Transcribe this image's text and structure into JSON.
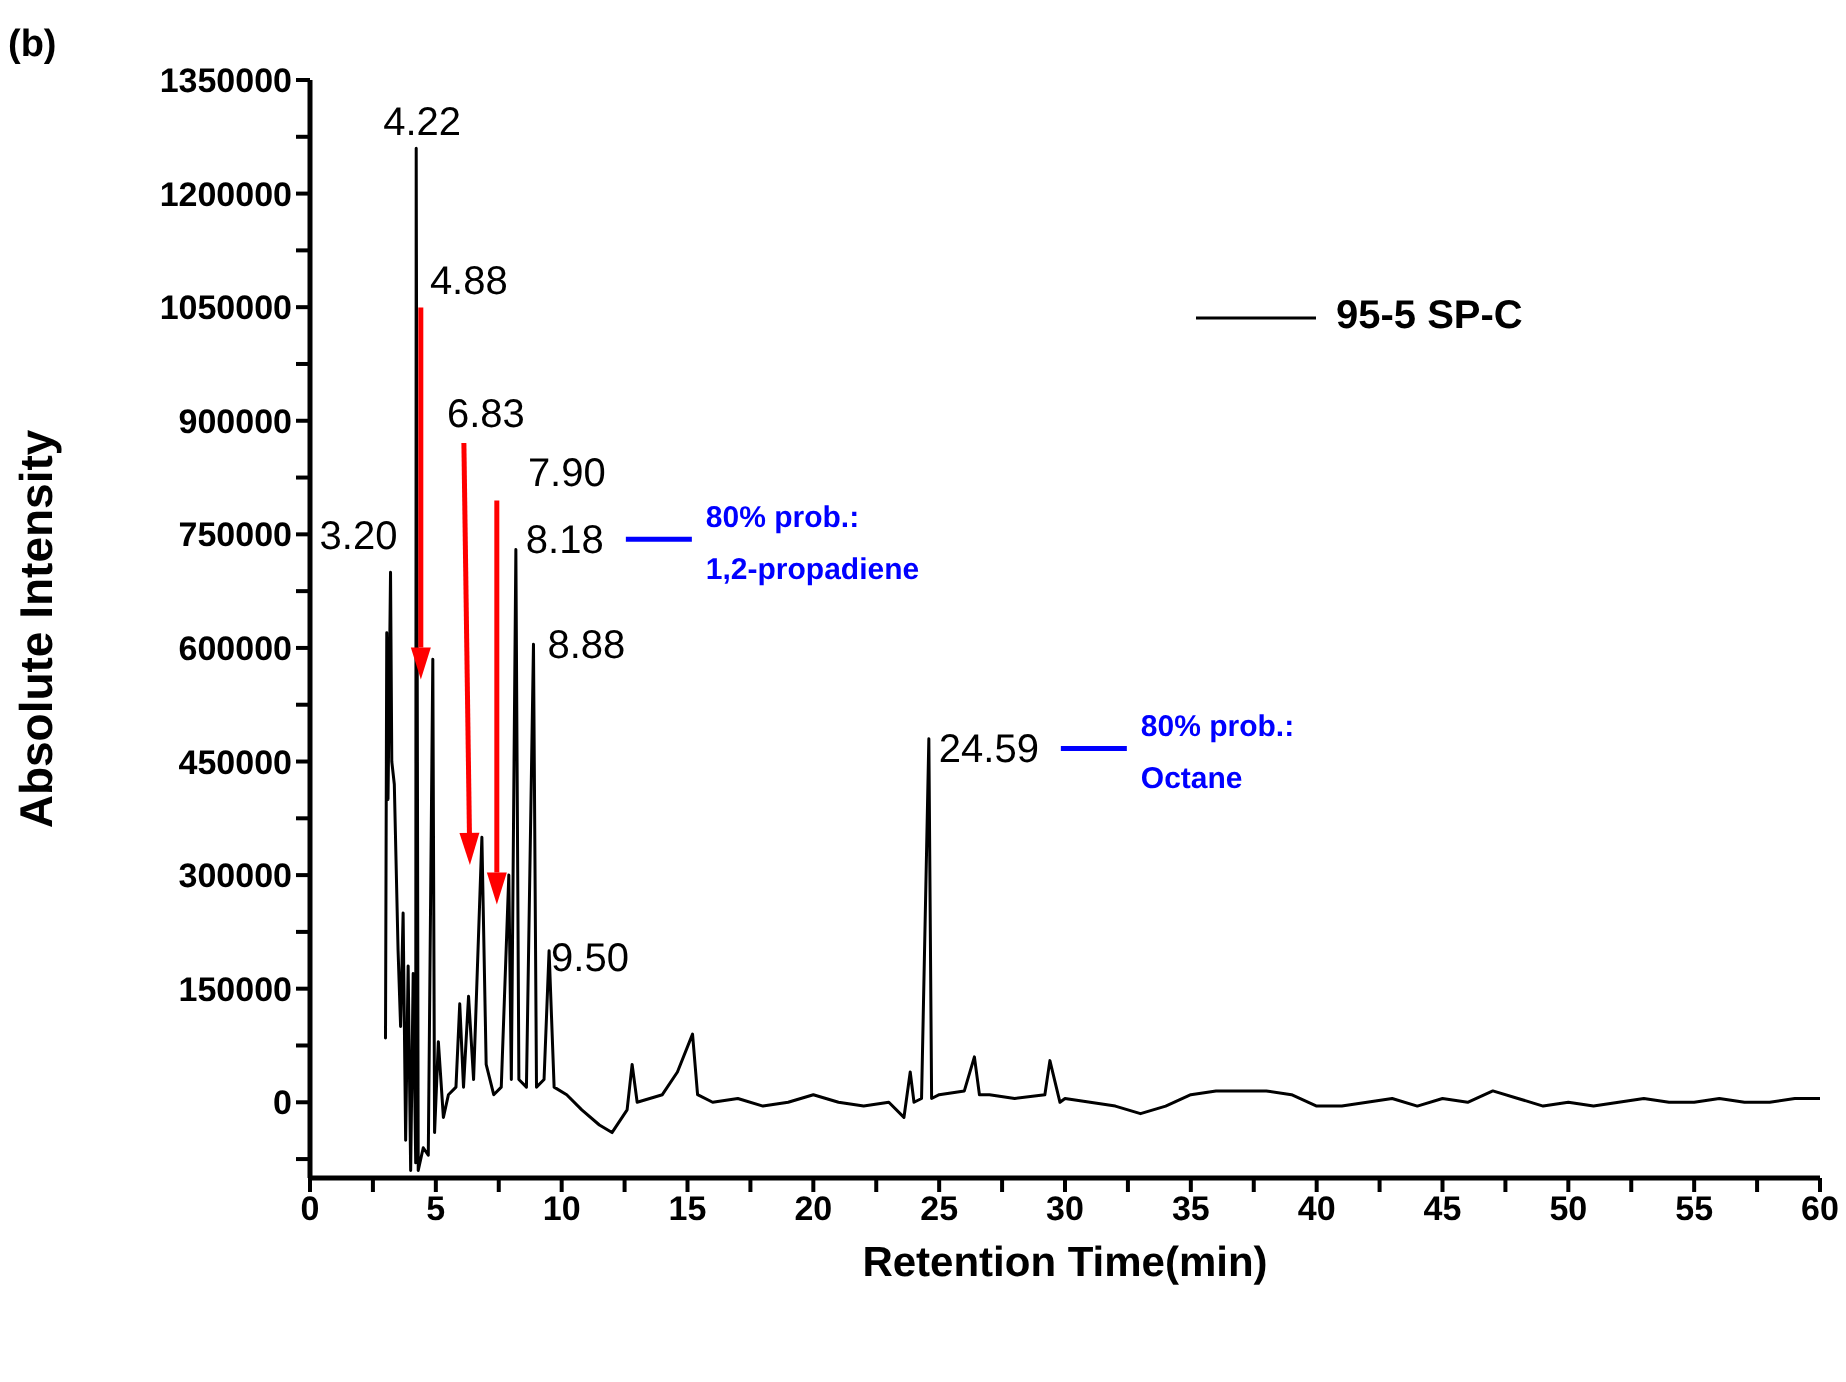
{
  "chart_data": {
    "type": "line",
    "xlabel": "Retention Time(min)",
    "ylabel": "Absolute Intensity",
    "xlim": [
      0,
      60
    ],
    "ylim": [
      -100000,
      1350000
    ],
    "xticks": [
      0,
      {
        "value": 2.5,
        "label": null
      },
      5,
      {
        "value": 7.5,
        "label": null
      },
      10,
      {
        "value": 12.5,
        "label": null
      },
      15,
      {
        "value": 17.5,
        "label": null
      },
      20,
      {
        "value": 22.5,
        "label": null
      },
      25,
      {
        "value": 27.5,
        "label": null
      },
      30,
      {
        "value": 32.5,
        "label": null
      },
      35,
      {
        "value": 37.5,
        "label": null
      },
      40,
      {
        "value": 42.5,
        "label": null
      },
      45,
      {
        "value": 47.5,
        "label": null
      },
      50,
      {
        "value": 52.5,
        "label": null
      },
      55,
      {
        "value": 57.5,
        "label": null
      },
      60
    ],
    "yticks": [
      {
        "value": -75000,
        "label": null
      },
      0,
      {
        "value": 75000,
        "label": null
      },
      150000,
      {
        "value": 225000,
        "label": null
      },
      300000,
      {
        "value": 375000,
        "label": null
      },
      450000,
      {
        "value": 525000,
        "label": null
      },
      600000,
      {
        "value": 675000,
        "label": null
      },
      750000,
      {
        "value": 825000,
        "label": null
      },
      900000,
      {
        "value": 975000,
        "label": null
      },
      1050000,
      {
        "value": 1125000,
        "label": null
      },
      1200000,
      {
        "value": 1275000,
        "label": null
      },
      1350000
    ],
    "legend": "top right",
    "grid": false,
    "marker": "none",
    "line_style": "solid",
    "series": [
      {
        "name": "95-5 SP-C",
        "color": "#000000",
        "x": [
          3.0,
          3.05,
          3.1,
          3.2,
          3.25,
          3.35,
          3.5,
          3.6,
          3.7,
          3.8,
          3.9,
          4.0,
          4.1,
          4.2,
          4.22,
          4.3,
          4.5,
          4.7,
          4.88,
          4.95,
          5.1,
          5.3,
          5.5,
          5.8,
          5.95,
          6.1,
          6.3,
          6.5,
          6.83,
          7.0,
          7.3,
          7.6,
          7.9,
          8.0,
          8.18,
          8.3,
          8.6,
          8.88,
          9.0,
          9.3,
          9.5,
          9.7,
          10.2,
          10.8,
          11.5,
          12.0,
          12.6,
          12.8,
          13,
          14,
          14.6,
          15.2,
          15.4,
          16,
          17,
          18,
          19,
          20,
          21,
          22,
          23,
          23.6,
          23.85,
          24,
          24.3,
          24.59,
          24.7,
          25,
          26,
          26.4,
          26.6,
          27,
          28,
          29.2,
          29.4,
          29.8,
          30,
          31,
          32,
          33,
          34,
          35,
          36,
          37,
          38,
          39,
          40,
          41,
          42,
          43,
          44,
          45,
          46,
          47,
          48,
          49,
          50,
          51,
          52,
          53,
          54,
          55,
          56,
          57,
          58,
          59,
          60
        ],
        "values": [
          85000,
          620000,
          400000,
          700000,
          450000,
          420000,
          200000,
          100000,
          250000,
          -50000,
          180000,
          -90000,
          170000,
          -80000,
          1260000,
          -90000,
          -60000,
          -70000,
          585000,
          -40000,
          80000,
          -20000,
          10000,
          20000,
          130000,
          20000,
          140000,
          30000,
          350000,
          50000,
          10000,
          20000,
          300000,
          30000,
          730000,
          30000,
          20000,
          605000,
          20000,
          30000,
          200000,
          20000,
          10000,
          -10000,
          -30000,
          -40000,
          -10000,
          50000,
          0,
          10000,
          40000,
          90000,
          10000,
          0,
          5000,
          -5000,
          0,
          10000,
          0,
          -5000,
          0,
          -20000,
          40000,
          0,
          5000,
          480000,
          5000,
          10000,
          15000,
          60000,
          10000,
          10000,
          5000,
          10000,
          55000,
          0,
          5000,
          0,
          -5000,
          -15000,
          -5000,
          10000,
          15000,
          15000,
          15000,
          10000,
          -5000,
          -5000,
          0,
          5000,
          -5000,
          5000,
          0,
          15000,
          5000,
          -5000,
          0,
          -5000,
          0,
          5000,
          0,
          0,
          5000,
          0,
          0,
          5000,
          5000
        ]
      }
    ],
    "annotations": [
      "(b)",
      {
        "text": "3.20",
        "x": 3.2,
        "y": 700000
      },
      {
        "text": "4.22",
        "x": 4.22,
        "y": 1260000
      },
      {
        "text": "4.88",
        "x": 4.88,
        "y": 585000
      },
      {
        "text": "6.83",
        "x": 6.83,
        "y": 350000
      },
      {
        "text": "7.90",
        "x": 7.9,
        "y": 300000
      },
      {
        "text": "8.18",
        "x": 8.18,
        "y": 730000
      },
      "80% prob.: 1,2-propadiene",
      {
        "text": "8.88",
        "x": 8.88,
        "y": 605000
      },
      {
        "text": "9.50",
        "x": 9.5,
        "y": 200000
      },
      {
        "text": "24.59",
        "x": 24.59,
        "y": 480000
      },
      "80% prob.: Octane"
    ]
  }
}
